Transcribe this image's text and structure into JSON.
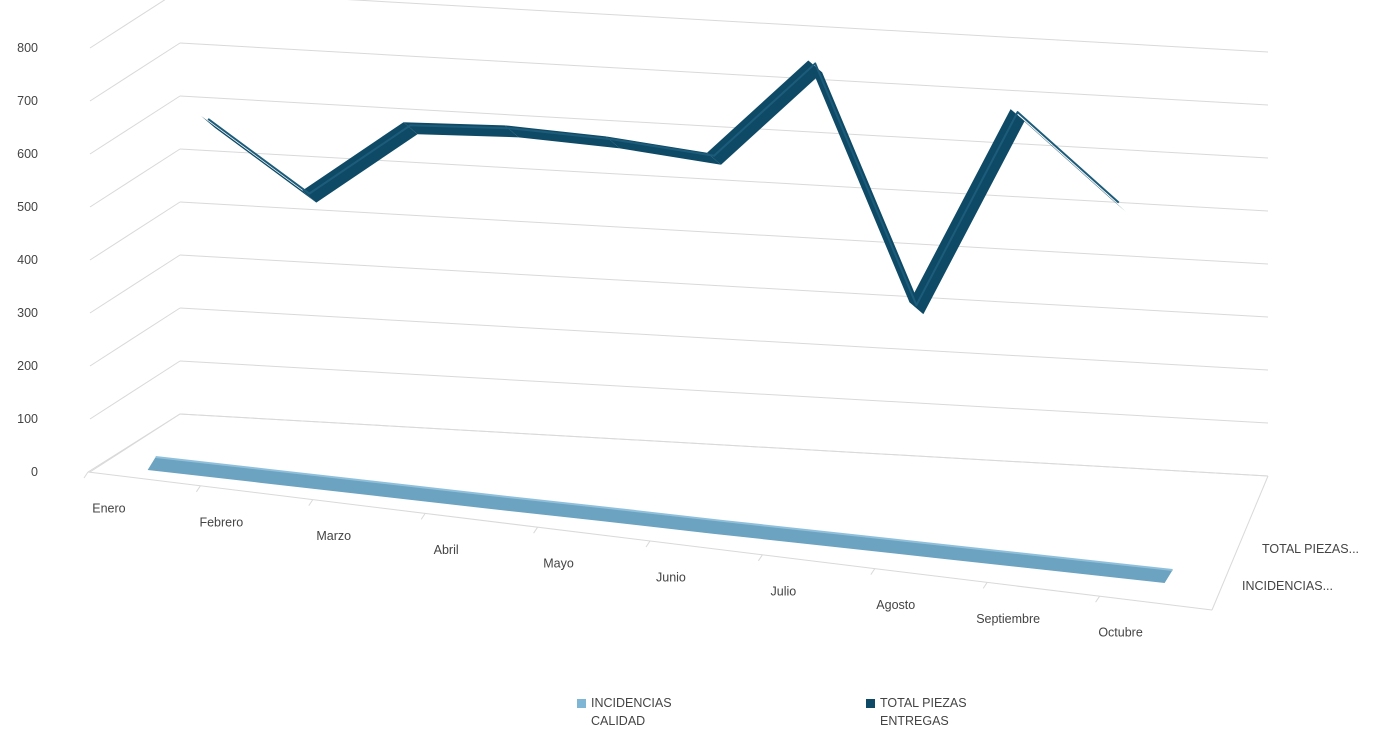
{
  "chart_data": {
    "type": "line",
    "subtype": "3d-line",
    "categories": [
      "Enero",
      "Febrero",
      "Marzo",
      "Abril",
      "Mayo",
      "Junio",
      "Julio",
      "Agosto",
      "Septiembre",
      "Octubre"
    ],
    "series": [
      {
        "name": "INCIDENCIAS CALIDAD",
        "values": [
          5,
          4,
          3,
          2,
          2,
          1,
          1,
          1,
          1,
          1
        ],
        "color": "#6BA3C1"
      },
      {
        "name": "TOTAL PIEZAS ENTREGAS",
        "values": [
          560,
          430,
          570,
          575,
          565,
          545,
          730,
          285,
          660,
          500
        ],
        "color": "#0E4A66"
      }
    ],
    "yticks": [
      0,
      100,
      200,
      300,
      400,
      500,
      600,
      700,
      800
    ],
    "ylim": [
      0,
      800
    ],
    "depth_labels": [
      "TOTAL PIEZAS...",
      "INCIDENCIAS..."
    ],
    "grid": true,
    "legend": {
      "position": "bottom",
      "entries": [
        {
          "label": "INCIDENCIAS\nCALIDAD",
          "color": "#7FB6D6"
        },
        {
          "label": "TOTAL PIEZAS\nENTREGAS",
          "color": "#0E4A66"
        }
      ]
    },
    "title": "",
    "xlabel": "",
    "ylabel": ""
  }
}
